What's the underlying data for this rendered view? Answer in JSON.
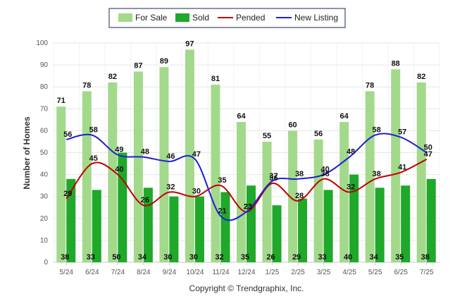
{
  "chart_data": {
    "type": "bar",
    "title": "",
    "xlabel": "",
    "ylabel": "Number of Homes",
    "ylim": [
      0,
      100
    ],
    "yticks": [
      0,
      10,
      20,
      30,
      40,
      50,
      60,
      70,
      80,
      90,
      100
    ],
    "categories": [
      "5/24",
      "6/24",
      "7/24",
      "8/24",
      "9/24",
      "10/24",
      "11/24",
      "12/24",
      "1/25",
      "2/25",
      "3/25",
      "4/25",
      "5/25",
      "6/25",
      "7/25"
    ],
    "series": [
      {
        "name": "For Sale",
        "kind": "bar",
        "color": "#a3d98b",
        "values": [
          71,
          78,
          82,
          87,
          89,
          97,
          81,
          64,
          55,
          60,
          56,
          64,
          78,
          88,
          82
        ]
      },
      {
        "name": "Sold",
        "kind": "bar",
        "color": "#1fa82a",
        "values": [
          38,
          33,
          50,
          34,
          30,
          30,
          32,
          35,
          26,
          29,
          33,
          40,
          34,
          35,
          38
        ]
      },
      {
        "name": "Pended",
        "kind": "line",
        "color": "#c00000",
        "values": [
          29,
          45,
          40,
          26,
          32,
          30,
          35,
          23,
          36,
          28,
          38,
          32,
          38,
          41,
          47
        ]
      },
      {
        "name": "New Listing",
        "kind": "line",
        "color": "#1f1fd6",
        "values": [
          56,
          58,
          49,
          48,
          46,
          47,
          21,
          23,
          37,
          38,
          40,
          48,
          58,
          57,
          50
        ]
      }
    ],
    "legend_position": "top-center",
    "grid": true,
    "credit": "Copyright © Trendgraphix, Inc."
  }
}
